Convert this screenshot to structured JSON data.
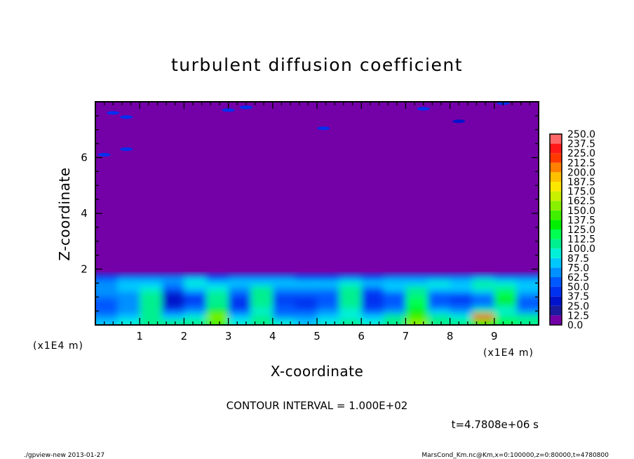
{
  "chart_data": {
    "type": "heatmap",
    "title": "turbulent diffusion coefficient",
    "xlabel": "X-coordinate",
    "ylabel": "Z-coordinate",
    "x_unit_label": "(x1E4 m)",
    "y_unit_label": "(x1E4 m)",
    "xlim": [
      0,
      10
    ],
    "ylim": [
      0,
      8
    ],
    "x_ticks": [
      "1",
      "2",
      "3",
      "4",
      "5",
      "6",
      "7",
      "8",
      "9"
    ],
    "y_ticks": [
      "2",
      "4",
      "6"
    ],
    "background_value": 0,
    "grid": false,
    "legend": "right",
    "colorbar": {
      "levels": [
        "0.0",
        "12.5",
        "25.0",
        "37.5",
        "50.0",
        "62.5",
        "75.0",
        "87.5",
        "100.0",
        "112.5",
        "125.0",
        "137.5",
        "150.0",
        "162.5",
        "175.0",
        "187.5",
        "200.0",
        "212.5",
        "225.0",
        "237.5",
        "250.0"
      ],
      "colors": [
        "#7400a8",
        "#1c1a9e",
        "#0012cc",
        "#0030f0",
        "#0058ff",
        "#0090ff",
        "#00c8ff",
        "#00f0d8",
        "#00f090",
        "#00ff50",
        "#00f000",
        "#40f000",
        "#88f000",
        "#c8f000",
        "#ffe800",
        "#ffc000",
        "#ff8000",
        "#ff3800",
        "#ff1818",
        "#ff6868"
      ]
    },
    "grid_x": [
      0.25,
      0.75,
      1.25,
      1.75,
      2.25,
      2.75,
      3.25,
      3.75,
      4.25,
      4.75,
      5.25,
      5.75,
      6.25,
      6.75,
      7.25,
      7.75,
      8.25,
      8.75,
      9.25,
      9.75
    ],
    "grid_z": [
      0.1,
      0.3,
      0.5,
      0.7,
      0.9,
      1.1,
      1.3,
      1.5,
      1.7
    ],
    "values": [
      [
        75,
        90,
        110,
        100,
        100,
        140,
        95,
        110,
        90,
        85,
        95,
        100,
        95,
        105,
        160,
        110,
        100,
        130,
        120,
        110
      ],
      [
        65,
        80,
        105,
        80,
        95,
        150,
        80,
        100,
        70,
        70,
        85,
        90,
        80,
        100,
        140,
        100,
        95,
        230,
        110,
        100
      ],
      [
        60,
        70,
        110,
        50,
        65,
        130,
        60,
        90,
        55,
        50,
        70,
        95,
        60,
        70,
        130,
        80,
        65,
        110,
        90,
        70
      ],
      [
        60,
        65,
        110,
        35,
        55,
        110,
        45,
        100,
        50,
        40,
        60,
        100,
        45,
        55,
        120,
        60,
        50,
        70,
        110,
        60
      ],
      [
        60,
        65,
        105,
        25,
        45,
        100,
        40,
        105,
        45,
        40,
        55,
        105,
        40,
        55,
        115,
        55,
        45,
        60,
        130,
        60
      ],
      [
        65,
        70,
        100,
        35,
        50,
        100,
        50,
        110,
        55,
        50,
        60,
        110,
        45,
        60,
        110,
        60,
        55,
        65,
        120,
        70
      ],
      [
        70,
        75,
        90,
        55,
        75,
        95,
        70,
        100,
        70,
        65,
        70,
        100,
        60,
        80,
        105,
        85,
        80,
        90,
        110,
        80
      ],
      [
        70,
        85,
        80,
        70,
        95,
        85,
        75,
        80,
        80,
        75,
        75,
        95,
        80,
        80,
        85,
        90,
        85,
        100,
        95,
        85
      ],
      [
        60,
        65,
        65,
        70,
        75,
        60,
        65,
        70,
        65,
        60,
        60,
        65,
        60,
        65,
        65,
        70,
        70,
        75,
        70,
        70
      ]
    ],
    "isolated_patches": [
      {
        "x": 0.4,
        "z": 7.6,
        "value": 40
      },
      {
        "x": 0.7,
        "z": 7.45,
        "value": 45
      },
      {
        "x": 0.2,
        "z": 6.1,
        "value": 40
      },
      {
        "x": 0.7,
        "z": 6.3,
        "value": 45
      },
      {
        "x": 3.0,
        "z": 7.7,
        "value": 40
      },
      {
        "x": 3.4,
        "z": 7.8,
        "value": 45
      },
      {
        "x": 5.15,
        "z": 7.05,
        "value": 45
      },
      {
        "x": 7.4,
        "z": 7.75,
        "value": 40
      },
      {
        "x": 8.2,
        "z": 7.3,
        "value": 35
      },
      {
        "x": 9.2,
        "z": 7.95,
        "value": 40
      }
    ]
  },
  "annotations": {
    "contour_interval": "CONTOUR INTERVAL = 1.000E+02",
    "time": "t=4.7808e+06 s"
  },
  "footer": {
    "left": "./gpview-new  2013-01-27",
    "right": "MarsCond_Km.nc@Km,x=0:100000,z=0:80000,t=4780800"
  }
}
